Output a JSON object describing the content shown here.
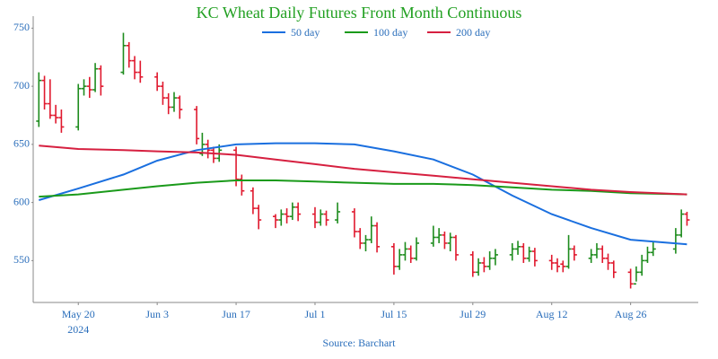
{
  "chart_data": {
    "type": "ohlc",
    "title": "KC Wheat Daily Futures Front Month Continuous",
    "source": "Source: Barchart",
    "up_color": "#1e8c1e",
    "down_color": "#e0192e",
    "x": [
      "2024-05-13",
      "2024-05-14",
      "2024-05-15",
      "2024-05-16",
      "2024-05-17",
      "2024-05-20",
      "2024-05-21",
      "2024-05-22",
      "2024-05-23",
      "2024-05-24",
      "2024-05-28",
      "2024-05-29",
      "2024-05-30",
      "2024-05-31",
      "2024-06-03",
      "2024-06-04",
      "2024-06-05",
      "2024-06-06",
      "2024-06-07",
      "2024-06-10",
      "2024-06-11",
      "2024-06-12",
      "2024-06-13",
      "2024-06-14",
      "2024-06-17",
      "2024-06-18",
      "2024-06-20",
      "2024-06-21",
      "2024-06-24",
      "2024-06-25",
      "2024-06-26",
      "2024-06-27",
      "2024-06-28",
      "2024-07-01",
      "2024-07-02",
      "2024-07-03",
      "2024-07-05",
      "2024-07-08",
      "2024-07-09",
      "2024-07-10",
      "2024-07-11",
      "2024-07-12",
      "2024-07-15",
      "2024-07-16",
      "2024-07-17",
      "2024-07-18",
      "2024-07-19",
      "2024-07-22",
      "2024-07-23",
      "2024-07-24",
      "2024-07-25",
      "2024-07-26",
      "2024-07-29",
      "2024-07-30",
      "2024-07-31",
      "2024-08-01",
      "2024-08-02",
      "2024-08-05",
      "2024-08-06",
      "2024-08-07",
      "2024-08-08",
      "2024-08-09",
      "2024-08-12",
      "2024-08-13",
      "2024-08-14",
      "2024-08-15",
      "2024-08-16",
      "2024-08-19",
      "2024-08-20",
      "2024-08-21",
      "2024-08-22",
      "2024-08-23",
      "2024-08-26",
      "2024-08-27",
      "2024-08-28",
      "2024-08-29",
      "2024-08-30",
      "2024-09-03",
      "2024-09-04",
      "2024-09-05"
    ],
    "open": [
      670,
      705,
      685,
      675,
      673,
      665,
      698,
      700,
      697,
      715,
      712,
      735,
      722,
      712,
      708,
      700,
      690,
      682,
      690,
      680,
      642,
      650,
      645,
      638,
      645,
      620,
      610,
      595,
      588,
      585,
      590,
      588,
      596,
      590,
      583,
      590,
      585,
      592,
      575,
      565,
      568,
      580,
      562,
      545,
      555,
      560,
      552,
      565,
      570,
      572,
      565,
      570,
      555,
      540,
      548,
      545,
      552,
      555,
      560,
      562,
      552,
      558,
      550,
      548,
      547,
      545,
      560,
      552,
      555,
      560,
      552,
      548,
      540,
      530,
      540,
      550,
      557,
      560,
      572,
      590
    ],
    "high": [
      712,
      709,
      706,
      684,
      680,
      702,
      706,
      708,
      720,
      718,
      746,
      738,
      726,
      722,
      712,
      704,
      694,
      695,
      692,
      683,
      660,
      654,
      648,
      650,
      648,
      624,
      613,
      598,
      590,
      594,
      595,
      600,
      600,
      596,
      594,
      593,
      600,
      595,
      578,
      572,
      588,
      583,
      565,
      560,
      566,
      563,
      570,
      580,
      578,
      575,
      574,
      572,
      558,
      552,
      553,
      558,
      560,
      565,
      567,
      565,
      562,
      561,
      555,
      552,
      550,
      572,
      563,
      560,
      565,
      563,
      556,
      550,
      543,
      545,
      555,
      562,
      566,
      578,
      594,
      592
    ],
    "low": [
      665,
      680,
      672,
      668,
      660,
      662,
      692,
      690,
      695,
      692,
      710,
      716,
      706,
      703,
      696,
      684,
      676,
      678,
      672,
      650,
      640,
      638,
      634,
      635,
      614,
      606,
      590,
      577,
      578,
      580,
      582,
      585,
      584,
      578,
      580,
      580,
      582,
      570,
      560,
      558,
      565,
      557,
      538,
      542,
      550,
      548,
      550,
      562,
      565,
      560,
      558,
      550,
      536,
      537,
      540,
      542,
      546,
      550,
      555,
      548,
      549,
      545,
      542,
      540,
      540,
      543,
      550,
      548,
      552,
      548,
      542,
      535,
      526,
      532,
      537,
      548,
      554,
      556,
      570,
      580
    ],
    "close": [
      705,
      685,
      675,
      673,
      665,
      698,
      700,
      697,
      715,
      700,
      735,
      722,
      712,
      708,
      700,
      690,
      682,
      690,
      680,
      655,
      650,
      645,
      638,
      645,
      620,
      610,
      595,
      585,
      585,
      590,
      588,
      596,
      590,
      583,
      590,
      585,
      592,
      575,
      565,
      568,
      580,
      562,
      545,
      555,
      560,
      552,
      565,
      570,
      572,
      565,
      570,
      555,
      540,
      548,
      545,
      552,
      555,
      560,
      562,
      552,
      558,
      550,
      548,
      545,
      545,
      560,
      555,
      555,
      560,
      552,
      548,
      540,
      530,
      540,
      550,
      557,
      560,
      572,
      590,
      585
    ],
    "lines": [
      {
        "name": "50 day",
        "color": "#1a6fdf",
        "x": [
          "2024-05-13",
          "2024-05-20",
          "2024-05-28",
          "2024-06-03",
          "2024-06-10",
          "2024-06-17",
          "2024-06-24",
          "2024-07-01",
          "2024-07-08",
          "2024-07-15",
          "2024-07-22",
          "2024-07-29",
          "2024-08-05",
          "2024-08-12",
          "2024-08-19",
          "2024-08-26",
          "2024-09-05"
        ],
        "values": [
          602,
          612,
          624,
          636,
          645,
          650,
          651,
          651,
          650,
          644,
          637,
          624,
          606,
          590,
          578,
          568,
          564
        ]
      },
      {
        "name": "100 day",
        "color": "#1a9a1a",
        "x": [
          "2024-05-13",
          "2024-05-20",
          "2024-05-28",
          "2024-06-03",
          "2024-06-10",
          "2024-06-17",
          "2024-06-24",
          "2024-07-01",
          "2024-07-08",
          "2024-07-15",
          "2024-07-22",
          "2024-07-29",
          "2024-08-05",
          "2024-08-12",
          "2024-08-19",
          "2024-08-26",
          "2024-09-05"
        ],
        "values": [
          605,
          607,
          611,
          614,
          617,
          619,
          619,
          618,
          617,
          616,
          616,
          615,
          613,
          611,
          610,
          608,
          607
        ]
      },
      {
        "name": "200 day",
        "color": "#d62040",
        "x": [
          "2024-05-13",
          "2024-05-20",
          "2024-05-28",
          "2024-06-03",
          "2024-06-10",
          "2024-06-17",
          "2024-06-24",
          "2024-07-01",
          "2024-07-08",
          "2024-07-15",
          "2024-07-22",
          "2024-07-29",
          "2024-08-05",
          "2024-08-12",
          "2024-08-19",
          "2024-08-26",
          "2024-09-05"
        ],
        "values": [
          649,
          646,
          645,
          644,
          643,
          641,
          637,
          633,
          629,
          626,
          623,
          620,
          617,
          614,
          611,
          609,
          607
        ]
      }
    ],
    "xlim": [
      "2024-05-12",
      "2024-09-07"
    ],
    "xticks": [
      {
        "value": "2024-05-20",
        "label": "May 20"
      },
      {
        "value": "2024-06-03",
        "label": "Jun 3"
      },
      {
        "value": "2024-06-17",
        "label": "Jun 17"
      },
      {
        "value": "2024-07-01",
        "label": "Jul 1"
      },
      {
        "value": "2024-07-15",
        "label": "Jul 15"
      },
      {
        "value": "2024-07-29",
        "label": "Jul 29"
      },
      {
        "value": "2024-08-12",
        "label": "Aug 12"
      },
      {
        "value": "2024-08-26",
        "label": "Aug 26"
      }
    ],
    "x_year": "2024",
    "ylim": [
      514,
      758
    ],
    "yticks": [
      550,
      600,
      650,
      700,
      750
    ],
    "grid": false
  }
}
